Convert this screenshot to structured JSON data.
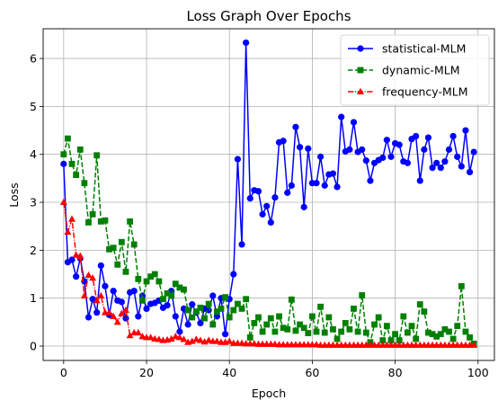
{
  "chart_data": {
    "type": "line",
    "title": "Loss Graph Over Epochs",
    "xlabel": "Epoch",
    "ylabel": "Loss",
    "xlim": [
      -4.95,
      103.95
    ],
    "ylim": [
      -0.3,
      6.62
    ],
    "xticks": [
      0,
      20,
      40,
      60,
      80,
      100
    ],
    "yticks": [
      0,
      1,
      2,
      3,
      4,
      5,
      6
    ],
    "grid": true,
    "legend_position": "top-right",
    "x": [
      0,
      1,
      2,
      3,
      4,
      5,
      6,
      7,
      8,
      9,
      10,
      11,
      12,
      13,
      14,
      15,
      16,
      17,
      18,
      19,
      20,
      21,
      22,
      23,
      24,
      25,
      26,
      27,
      28,
      29,
      30,
      31,
      32,
      33,
      34,
      35,
      36,
      37,
      38,
      39,
      40,
      41,
      42,
      43,
      44,
      45,
      46,
      47,
      48,
      49,
      50,
      51,
      52,
      53,
      54,
      55,
      56,
      57,
      58,
      59,
      60,
      61,
      62,
      63,
      64,
      65,
      66,
      67,
      68,
      69,
      70,
      71,
      72,
      73,
      74,
      75,
      76,
      77,
      78,
      79,
      80,
      81,
      82,
      83,
      84,
      85,
      86,
      87,
      88,
      89,
      90,
      91,
      92,
      93,
      94,
      95,
      96,
      97,
      98,
      99
    ],
    "series": [
      {
        "name": "statistical-MLM",
        "color": "#0000ff",
        "marker": "circle",
        "linestyle": "solid",
        "values": [
          3.8,
          1.75,
          1.8,
          1.45,
          1.83,
          1.35,
          0.6,
          0.98,
          0.7,
          1.68,
          1.25,
          0.65,
          1.15,
          0.95,
          0.92,
          0.58,
          1.12,
          1.15,
          0.62,
          1.05,
          0.78,
          0.88,
          0.9,
          0.95,
          0.8,
          0.85,
          1.15,
          0.62,
          0.3,
          0.78,
          0.45,
          0.87,
          0.7,
          0.48,
          0.78,
          0.75,
          1.05,
          0.62,
          1.0,
          0.25,
          0.98,
          1.5,
          3.9,
          2.12,
          6.33,
          3.08,
          3.25,
          3.23,
          2.75,
          2.92,
          2.58,
          3.1,
          4.25,
          4.28,
          3.2,
          3.35,
          4.57,
          4.15,
          2.9,
          4.12,
          3.4,
          3.4,
          3.95,
          3.35,
          3.58,
          3.6,
          3.32,
          4.78,
          4.06,
          4.1,
          4.67,
          4.05,
          4.1,
          3.87,
          3.45,
          3.82,
          3.88,
          3.93,
          4.3,
          3.95,
          4.23,
          4.2,
          3.85,
          3.82,
          4.32,
          4.38,
          3.45,
          4.1,
          4.35,
          3.72,
          3.82,
          3.72,
          3.85,
          4.1,
          4.38,
          3.95,
          3.75,
          4.5,
          3.63,
          4.05
        ]
      },
      {
        "name": "dynamic-MLM",
        "color": "#008000",
        "marker": "square",
        "linestyle": "dashed",
        "values": [
          4.0,
          4.33,
          3.8,
          3.57,
          4.1,
          3.4,
          2.58,
          2.75,
          3.98,
          2.6,
          2.62,
          2.02,
          2.05,
          1.7,
          2.17,
          1.55,
          2.6,
          2.12,
          1.4,
          0.95,
          1.35,
          1.45,
          1.5,
          1.35,
          0.98,
          1.1,
          1.05,
          1.3,
          1.22,
          1.18,
          0.75,
          0.6,
          0.72,
          0.8,
          0.58,
          0.88,
          0.45,
          0.72,
          0.78,
          1.02,
          0.6,
          0.75,
          0.88,
          0.78,
          0.98,
          0.18,
          0.48,
          0.6,
          0.3,
          0.45,
          0.58,
          0.3,
          0.62,
          0.38,
          0.35,
          0.97,
          0.32,
          0.45,
          0.38,
          0.27,
          0.62,
          0.3,
          0.82,
          0.28,
          0.6,
          0.35,
          0.15,
          0.3,
          0.48,
          0.35,
          0.78,
          0.3,
          1.06,
          0.28,
          0.08,
          0.45,
          0.6,
          0.12,
          0.42,
          0.12,
          0.25,
          0.12,
          0.62,
          0.28,
          0.42,
          0.15,
          0.87,
          0.72,
          0.28,
          0.25,
          0.2,
          0.25,
          0.35,
          0.3,
          0.15,
          0.42,
          1.25,
          0.3,
          0.18,
          0.05
        ]
      },
      {
        "name": "frequency-MLM",
        "color": "#ff0000",
        "marker": "triangle",
        "linestyle": "dashdot",
        "values": [
          3.0,
          2.38,
          2.65,
          1.9,
          1.88,
          1.05,
          1.48,
          1.42,
          0.95,
          1.05,
          0.7,
          0.7,
          0.62,
          0.5,
          0.68,
          0.75,
          0.22,
          0.28,
          0.28,
          0.2,
          0.18,
          0.18,
          0.15,
          0.14,
          0.12,
          0.13,
          0.15,
          0.2,
          0.18,
          0.14,
          0.08,
          0.1,
          0.14,
          0.12,
          0.09,
          0.12,
          0.1,
          0.1,
          0.08,
          0.08,
          0.1,
          0.06,
          0.06,
          0.06,
          0.05,
          0.05,
          0.05,
          0.04,
          0.04,
          0.04,
          0.04,
          0.04,
          0.03,
          0.03,
          0.03,
          0.03,
          0.03,
          0.03,
          0.03,
          0.03,
          0.03,
          0.03,
          0.02,
          0.02,
          0.02,
          0.02,
          0.02,
          0.02,
          0.02,
          0.02,
          0.02,
          0.02,
          0.02,
          0.02,
          0.02,
          0.02,
          0.02,
          0.02,
          0.02,
          0.02,
          0.02,
          0.02,
          0.02,
          0.02,
          0.02,
          0.02,
          0.02,
          0.02,
          0.02,
          0.02,
          0.02,
          0.02,
          0.02,
          0.02,
          0.02,
          0.02,
          0.02,
          0.02,
          0.02,
          0.02
        ]
      }
    ]
  }
}
